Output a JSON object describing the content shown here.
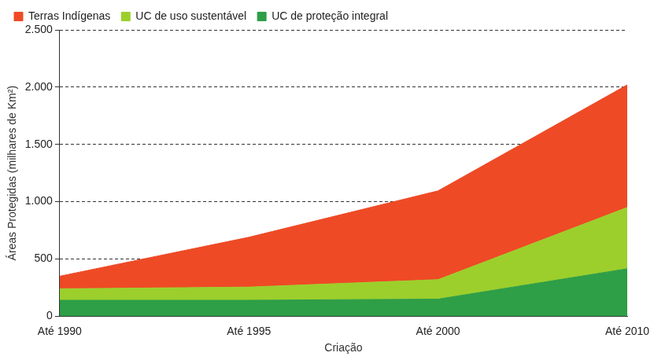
{
  "chart_data": {
    "type": "area",
    "stacked": true,
    "grid": true,
    "legend": "top-left",
    "x_label": "Criação",
    "y_label": "Áreas Protegidas (milhares de Km²)",
    "categories": [
      "Até 1990",
      "Até 1995",
      "Até 2000",
      "Até 2010"
    ],
    "series": [
      {
        "name": "UC de proteção integral",
        "color": "#2e9e47",
        "values": [
          140,
          140,
          150,
          415
        ]
      },
      {
        "name": "UC de uso sustentável",
        "color": "#9ccf2c",
        "values": [
          100,
          115,
          170,
          535
        ]
      },
      {
        "name": "Terras Indígenas",
        "color": "#ee4a26",
        "values": [
          110,
          435,
          775,
          1070
        ]
      }
    ],
    "ylim": [
      0,
      2500
    ],
    "yticks": [
      0,
      500,
      {
        "value": 1000,
        "label": "1.000"
      },
      {
        "value": 1500,
        "label": "1.500"
      },
      {
        "value": 2000,
        "label": "2.000"
      },
      {
        "value": 2500,
        "label": "2.500"
      }
    ]
  }
}
